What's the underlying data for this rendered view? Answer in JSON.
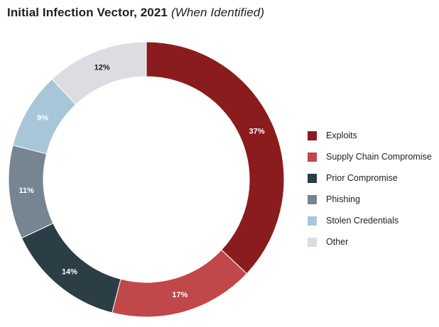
{
  "chart_data": {
    "type": "pie",
    "title": "Initial Infection Vector, 2021",
    "subtitle": "(When Identified)",
    "legend_position": "right",
    "slices": [
      {
        "label": "Exploits",
        "value": 37,
        "display": "37%",
        "color": "#8a1c1e"
      },
      {
        "label": "Supply Chain Compromise",
        "value": 17,
        "display": "17%",
        "color": "#c0474a"
      },
      {
        "label": "Prior Compromise",
        "value": 14,
        "display": "14%",
        "color": "#2b3d45"
      },
      {
        "label": "Phishing",
        "value": 11,
        "display": "11%",
        "color": "#778491"
      },
      {
        "label": "Stolen Credentials",
        "value": 9,
        "display": "9%",
        "color": "#a7c7d9"
      },
      {
        "label": "Other",
        "value": 12,
        "display": "12%",
        "color": "#dcdce2"
      }
    ]
  }
}
